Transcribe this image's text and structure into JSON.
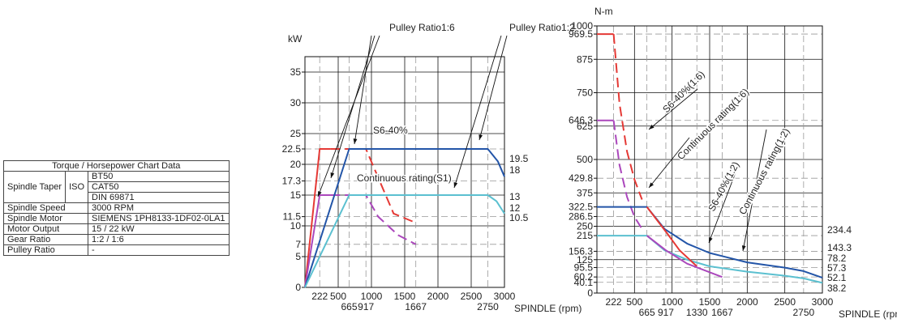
{
  "spec_table": {
    "title": "Torque / Horsepower Chart Data",
    "spindle_taper_label": "Spindle Taper",
    "iso_label": "ISO",
    "tapers": [
      "BT50",
      "CAT50",
      "DIN 69871"
    ],
    "spindle_speed_label": "Spindle Speed",
    "spindle_speed": "3000 RPM",
    "spindle_motor_label": "Spindle Motor",
    "spindle_motor": "SIEMENS 1PH8133-1DF02-0LA1",
    "motor_output_label": "Motor Output",
    "motor_output": "15 / 22 kW",
    "gear_ratio_label": "Gear Ratio",
    "gear_ratio": "1:2 / 1:6",
    "pulley_ratio_label": "Pulley Ratio",
    "pulley_ratio": "-"
  },
  "chart_data": [
    {
      "type": "line",
      "ylabel": "kW",
      "xlabel": "SPINDLE (rpm)",
      "xlim": [
        0,
        3000
      ],
      "ylim": [
        0,
        37.5
      ],
      "grid": true,
      "x_ticks_top": [
        "222",
        "500",
        "1000",
        "1500",
        "2000",
        "2500",
        "3000"
      ],
      "x_ticks_bottom": [
        "665",
        "917",
        "1667",
        "2750"
      ],
      "y_ticks": [
        "0",
        "5",
        "7",
        "10",
        "11.5",
        "15",
        "17.3",
        "20",
        "22.5",
        "25",
        "30",
        "35"
      ],
      "right_labels": [
        "19.5",
        "18",
        "13",
        "12",
        "10.5"
      ],
      "annotations": [
        "Pulley Ratio1:6",
        "Pulley Ratio1:2",
        "S6-40%",
        "Continuous rating(S1)"
      ],
      "series": [
        {
          "color": "#e53935",
          "dash": "solid",
          "x": [
            0,
            222,
            380
          ],
          "y": [
            0,
            22.5,
            22.5
          ]
        },
        {
          "color": "#e53935",
          "dash": "dashed",
          "x": [
            380,
            917,
            1333,
            1667
          ],
          "y": [
            22.5,
            22.5,
            12,
            10.5
          ]
        },
        {
          "color": "#ab47bc",
          "dash": "solid",
          "x": [
            0,
            222,
            380
          ],
          "y": [
            0,
            15,
            15
          ]
        },
        {
          "color": "#ab47bc",
          "dash": "dashed",
          "x": [
            380,
            917,
            1100,
            1400,
            1667
          ],
          "y": [
            15,
            15,
            11.5,
            8.5,
            7
          ]
        },
        {
          "color": "#2355a8",
          "dash": "solid",
          "x": [
            0,
            665,
            2750,
            2900,
            3000
          ],
          "y": [
            0,
            22.5,
            22.5,
            20.5,
            18
          ]
        },
        {
          "color": "#5bc0d0",
          "dash": "solid",
          "x": [
            0,
            665,
            2750,
            2880,
            3000
          ],
          "y": [
            0,
            15,
            15,
            14,
            12
          ]
        }
      ]
    },
    {
      "type": "line",
      "ylabel": "N-m",
      "xlabel": "SPINDLE (rpm)",
      "xlim": [
        0,
        3000
      ],
      "ylim": [
        0,
        1000
      ],
      "grid": true,
      "x_ticks_top": [
        "222",
        "500",
        "1000",
        "1500",
        "2000",
        "2500",
        "3000"
      ],
      "x_ticks_bottom": [
        "665",
        "917",
        "1330",
        "1667",
        "2750"
      ],
      "y_ticks": [
        "0",
        "40.1",
        "60.2",
        "95.5",
        "125",
        "156.3",
        "215",
        "250",
        "286.5",
        "322.5",
        "375",
        "429.8",
        "500",
        "625",
        "646.3",
        "750",
        "875",
        "969.5",
        "1000"
      ],
      "right_labels": [
        "234.4",
        "143.3",
        "78.2",
        "57.3",
        "52.1",
        "38.2"
      ],
      "annotations": [
        "S6-40%(1:6)",
        "Continuous rating(1:6)",
        "S6-40%(1:2)",
        "Continuous rating(1:2)"
      ],
      "series": [
        {
          "color": "#e53935",
          "dash": "solid",
          "x": [
            0,
            222
          ],
          "y": [
            969.5,
            969.5
          ]
        },
        {
          "color": "#e53935",
          "dash": "dashed",
          "x": [
            222,
            300,
            400,
            500,
            600
          ],
          "y": [
            969.5,
            710,
            530,
            425,
            350
          ]
        },
        {
          "color": "#ab47bc",
          "dash": "solid",
          "x": [
            0,
            222
          ],
          "y": [
            646.3,
            646.3
          ]
        },
        {
          "color": "#ab47bc",
          "dash": "dashed",
          "x": [
            222,
            300,
            400,
            500,
            600
          ],
          "y": [
            646.3,
            480,
            360,
            285,
            240
          ]
        },
        {
          "color": "#2355a8",
          "dash": "solid",
          "x": [
            0,
            665,
            900,
            1200,
            1500,
            2000,
            2500,
            2750,
            3000
          ],
          "y": [
            322.5,
            322.5,
            240,
            185,
            150,
            115,
            95,
            82,
            57.3
          ]
        },
        {
          "color": "#5bc0d0",
          "dash": "solid",
          "x": [
            0,
            665,
            900,
            1200,
            1500,
            2000,
            2500,
            2750,
            3000
          ],
          "y": [
            215,
            215,
            160,
            125,
            100,
            80,
            65,
            55,
            38.2
          ]
        },
        {
          "color": "#e53935",
          "dash": "solid",
          "x": [
            665,
            917,
            1100,
            1330
          ],
          "y": [
            322.5,
            230,
            160,
            100
          ]
        },
        {
          "color": "#ab47bc",
          "dash": "solid",
          "x": [
            665,
            917,
            1200,
            1667
          ],
          "y": [
            215,
            160,
            110,
            60
          ]
        }
      ]
    }
  ]
}
